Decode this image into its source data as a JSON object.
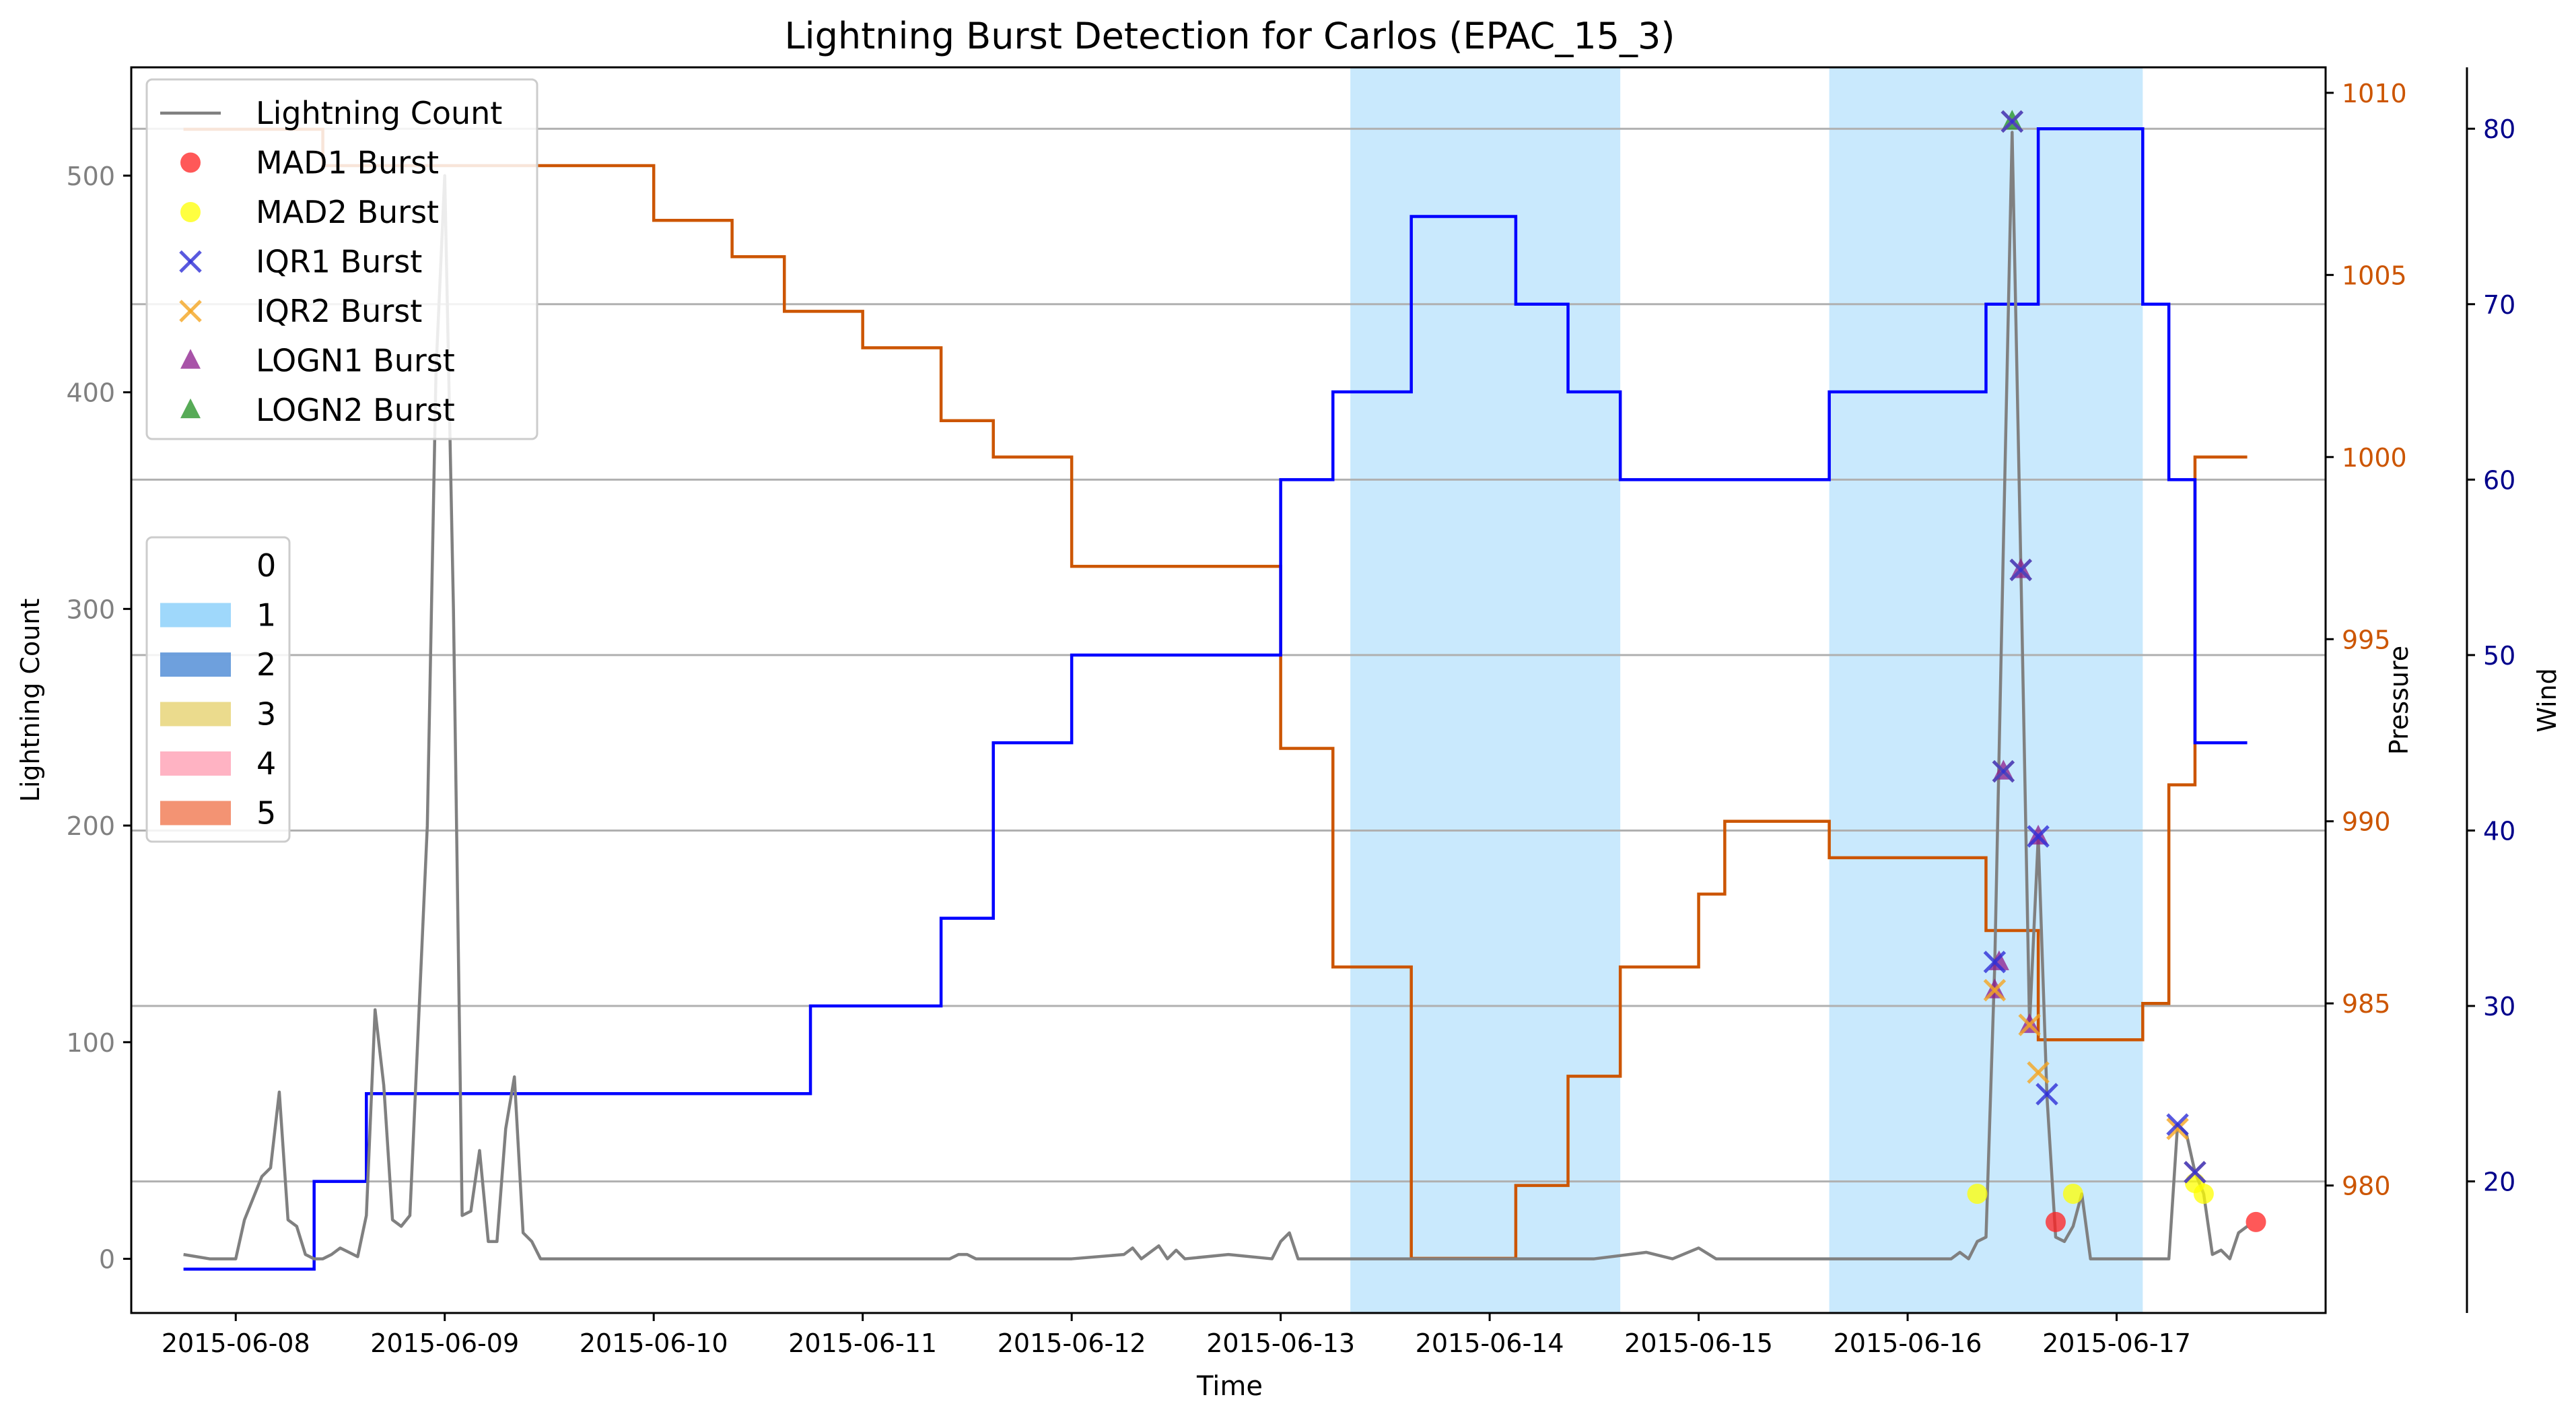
{
  "chart_data": {
    "type": "line",
    "title": "Lightning Burst Detection for Carlos (EPAC_15_3)",
    "xlabel": "Time",
    "ylabel_left": "Lightning Count",
    "ylabel_pressure": "Pressure",
    "ylabel_wind": "Wind",
    "x_range": [
      "2015-06-07T12:00",
      "2015-06-18T00:00"
    ],
    "x_ticks": [
      "2015-06-08",
      "2015-06-09",
      "2015-06-10",
      "2015-06-11",
      "2015-06-12",
      "2015-06-13",
      "2015-06-14",
      "2015-06-15",
      "2015-06-16",
      "2015-06-17"
    ],
    "ylim_left": [
      -25,
      550
    ],
    "yticks_left": [
      0,
      100,
      200,
      300,
      400,
      500
    ],
    "ylim_pressure": [
      976.5,
      1010.7
    ],
    "yticks_pressure": [
      980,
      985,
      990,
      995,
      1000,
      1005,
      1010
    ],
    "ylim_wind": [
      12.5,
      83.5
    ],
    "yticks_wind": [
      20,
      30,
      40,
      50,
      60,
      70,
      80
    ],
    "grid_y": true,
    "colors": {
      "lightning": "#808080",
      "pressure": "#cc5500",
      "wind": "#0000ff",
      "pressure_axis": "#cc5500",
      "wind_axis": "#00008b",
      "left_axis": "#808080",
      "cat1": "#87cefa",
      "cat2": "#4a88d4",
      "cat3": "#e6d270",
      "cat4": "#ffa0b4",
      "cat5": "#f07850",
      "mad1": "#ff2020",
      "mad2": "#ffff00",
      "iqr1": "#3030d8",
      "iqr2": "#f5a623",
      "logn1": "#8b1a8b",
      "logn2": "#1f8f1f"
    },
    "series_legend": [
      {
        "key": "lightning",
        "label": "Lightning Count",
        "marker": "line"
      },
      {
        "key": "mad1",
        "label": "MAD1 Burst",
        "marker": "circle"
      },
      {
        "key": "mad2",
        "label": "MAD2 Burst",
        "marker": "circle"
      },
      {
        "key": "iqr1",
        "label": "IQR1 Burst",
        "marker": "x"
      },
      {
        "key": "iqr2",
        "label": "IQR2 Burst",
        "marker": "x"
      },
      {
        "key": "logn1",
        "label": "LOGN1 Burst",
        "marker": "triangle"
      },
      {
        "key": "logn2",
        "label": "LOGN2 Burst",
        "marker": "triangle"
      }
    ],
    "category_legend": [
      {
        "label": "0",
        "color": ""
      },
      {
        "label": "1",
        "color": "#87cefa"
      },
      {
        "label": "2",
        "color": "#4a88d4"
      },
      {
        "label": "3",
        "color": "#e6d270"
      },
      {
        "label": "4",
        "color": "#ffa0b4"
      },
      {
        "label": "5",
        "color": "#f07850"
      }
    ],
    "category_spans": [
      {
        "category": 1,
        "start": "2015-06-13T08:00",
        "end": "2015-06-14T15:00"
      },
      {
        "category": 1,
        "start": "2015-06-15T15:00",
        "end": "2015-06-17T03:00"
      }
    ],
    "lightning": [
      [
        "2015-06-07T18:00",
        2
      ],
      [
        "2015-06-07T21:00",
        0
      ],
      [
        "2015-06-08T00:00",
        0
      ],
      [
        "2015-06-08T01:00",
        18
      ],
      [
        "2015-06-08T02:00",
        28
      ],
      [
        "2015-06-08T03:00",
        38
      ],
      [
        "2015-06-08T04:00",
        42
      ],
      [
        "2015-06-08T05:00",
        77
      ],
      [
        "2015-06-08T06:00",
        18
      ],
      [
        "2015-06-08T07:00",
        15
      ],
      [
        "2015-06-08T08:00",
        2
      ],
      [
        "2015-06-08T09:00",
        0
      ],
      [
        "2015-06-08T10:00",
        0
      ],
      [
        "2015-06-08T11:00",
        2
      ],
      [
        "2015-06-08T12:00",
        5
      ],
      [
        "2015-06-08T13:00",
        3
      ],
      [
        "2015-06-08T14:00",
        1
      ],
      [
        "2015-06-08T15:00",
        20
      ],
      [
        "2015-06-08T16:00",
        115
      ],
      [
        "2015-06-08T17:00",
        80
      ],
      [
        "2015-06-08T18:00",
        18
      ],
      [
        "2015-06-08T19:00",
        15
      ],
      [
        "2015-06-08T20:00",
        20
      ],
      [
        "2015-06-08T21:00",
        110
      ],
      [
        "2015-06-08T22:00",
        200
      ],
      [
        "2015-06-08T23:00",
        410
      ],
      [
        "2015-06-09T00:00",
        500
      ],
      [
        "2015-06-09T01:00",
        300
      ],
      [
        "2015-06-09T02:00",
        20
      ],
      [
        "2015-06-09T03:00",
        22
      ],
      [
        "2015-06-09T04:00",
        50
      ],
      [
        "2015-06-09T05:00",
        8
      ],
      [
        "2015-06-09T06:00",
        8
      ],
      [
        "2015-06-09T07:00",
        60
      ],
      [
        "2015-06-09T08:00",
        84
      ],
      [
        "2015-06-09T09:00",
        12
      ],
      [
        "2015-06-09T10:00",
        8
      ],
      [
        "2015-06-09T11:00",
        0
      ],
      [
        "2015-06-09T18:00",
        0
      ],
      [
        "2015-06-10T00:00",
        0
      ],
      [
        "2015-06-10T06:00",
        0
      ],
      [
        "2015-06-10T12:00",
        0
      ],
      [
        "2015-06-10T18:00",
        0
      ],
      [
        "2015-06-11T00:00",
        0
      ],
      [
        "2015-06-11T06:00",
        0
      ],
      [
        "2015-06-11T09:00",
        0
      ],
      [
        "2015-06-11T10:00",
        0
      ],
      [
        "2015-06-11T11:00",
        2
      ],
      [
        "2015-06-11T12:00",
        2
      ],
      [
        "2015-06-11T13:00",
        0
      ],
      [
        "2015-06-11T18:00",
        0
      ],
      [
        "2015-06-12T00:00",
        0
      ],
      [
        "2015-06-12T06:00",
        2
      ],
      [
        "2015-06-12T07:00",
        5
      ],
      [
        "2015-06-12T08:00",
        0
      ],
      [
        "2015-06-12T09:00",
        3
      ],
      [
        "2015-06-12T10:00",
        6
      ],
      [
        "2015-06-12T11:00",
        0
      ],
      [
        "2015-06-12T12:00",
        4
      ],
      [
        "2015-06-12T13:00",
        0
      ],
      [
        "2015-06-12T18:00",
        2
      ],
      [
        "2015-06-12T23:00",
        0
      ],
      [
        "2015-06-13T00:00",
        8
      ],
      [
        "2015-06-13T01:00",
        12
      ],
      [
        "2015-06-13T02:00",
        0
      ],
      [
        "2015-06-13T12:00",
        0
      ],
      [
        "2015-06-14T00:00",
        0
      ],
      [
        "2015-06-14T12:00",
        0
      ],
      [
        "2015-06-14T18:00",
        3
      ],
      [
        "2015-06-14T21:00",
        0
      ],
      [
        "2015-06-15T00:00",
        5
      ],
      [
        "2015-06-15T02:00",
        0
      ],
      [
        "2015-06-15T12:00",
        0
      ],
      [
        "2015-06-16T00:00",
        0
      ],
      [
        "2015-06-16T05:00",
        0
      ],
      [
        "2015-06-16T06:00",
        3
      ],
      [
        "2015-06-16T07:00",
        0
      ],
      [
        "2015-06-16T08:00",
        8
      ],
      [
        "2015-06-16T09:00",
        10
      ],
      [
        "2015-06-16T10:00",
        135
      ],
      [
        "2015-06-16T11:00",
        330
      ],
      [
        "2015-06-16T12:00",
        520
      ],
      [
        "2015-06-16T13:00",
        320
      ],
      [
        "2015-06-16T14:00",
        108
      ],
      [
        "2015-06-16T15:00",
        195
      ],
      [
        "2015-06-16T16:00",
        75
      ],
      [
        "2015-06-16T17:00",
        10
      ],
      [
        "2015-06-16T18:00",
        8
      ],
      [
        "2015-06-16T19:00",
        15
      ],
      [
        "2015-06-16T20:00",
        30
      ],
      [
        "2015-06-16T21:00",
        0
      ],
      [
        "2015-06-17T00:00",
        0
      ],
      [
        "2015-06-17T06:00",
        0
      ],
      [
        "2015-06-17T07:00",
        62
      ],
      [
        "2015-06-17T08:00",
        58
      ],
      [
        "2015-06-17T09:00",
        40
      ],
      [
        "2015-06-17T10:00",
        30
      ],
      [
        "2015-06-17T11:00",
        2
      ],
      [
        "2015-06-17T12:00",
        4
      ],
      [
        "2015-06-17T13:00",
        0
      ],
      [
        "2015-06-17T14:00",
        12
      ],
      [
        "2015-06-17T15:00",
        15
      ]
    ],
    "pressure": [
      [
        "2015-06-07T18:00",
        1009.0
      ],
      [
        "2015-06-08T10:00",
        1008.0
      ],
      [
        "2015-06-09T24:00",
        1008.0
      ],
      [
        "2015-06-10T00:00",
        1006.5
      ],
      [
        "2015-06-10T09:00",
        1005.5
      ],
      [
        "2015-06-10T15:00",
        1004.0
      ],
      [
        "2015-06-11T00:00",
        1003.0
      ],
      [
        "2015-06-11T09:00",
        1001.0
      ],
      [
        "2015-06-11T15:00",
        1000.0
      ],
      [
        "2015-06-12T00:00",
        997.0
      ],
      [
        "2015-06-13T00:00",
        992.0
      ],
      [
        "2015-06-13T06:00",
        986.0
      ],
      [
        "2015-06-13T15:00",
        978.0
      ],
      [
        "2015-06-14T03:00",
        980.0
      ],
      [
        "2015-06-14T09:00",
        983.0
      ],
      [
        "2015-06-14T15:00",
        986.0
      ],
      [
        "2015-06-15T00:00",
        988.0
      ],
      [
        "2015-06-15T03:00",
        990.0
      ],
      [
        "2015-06-15T15:00",
        989.0
      ],
      [
        "2015-06-16T09:00",
        987.0
      ],
      [
        "2015-06-16T15:00",
        984.0
      ],
      [
        "2015-06-17T03:00",
        985.0
      ],
      [
        "2015-06-17T06:00",
        991.0
      ],
      [
        "2015-06-17T09:00",
        1000.0
      ]
    ],
    "pressure_end": "2015-06-17T15:00",
    "wind": [
      [
        "2015-06-07T18:00",
        15
      ],
      [
        "2015-06-08T09:00",
        20
      ],
      [
        "2015-06-08T15:00",
        25
      ],
      [
        "2015-06-10T18:00",
        30
      ],
      [
        "2015-06-11T09:00",
        35
      ],
      [
        "2015-06-11T15:00",
        45
      ],
      [
        "2015-06-12T00:00",
        50
      ],
      [
        "2015-06-13T00:00",
        60
      ],
      [
        "2015-06-13T06:00",
        65
      ],
      [
        "2015-06-13T15:00",
        75
      ],
      [
        "2015-06-14T03:00",
        70
      ],
      [
        "2015-06-14T09:00",
        65
      ],
      [
        "2015-06-14T15:00",
        60
      ],
      [
        "2015-06-15T15:00",
        65
      ],
      [
        "2015-06-16T09:00",
        70
      ],
      [
        "2015-06-16T15:00",
        80
      ],
      [
        "2015-06-17T03:00",
        70
      ],
      [
        "2015-06-17T06:00",
        60
      ],
      [
        "2015-06-17T09:00",
        45
      ]
    ],
    "wind_end": "2015-06-17T15:00",
    "bursts": {
      "mad1": [
        [
          "2015-06-16T17:00",
          17
        ],
        [
          "2015-06-17T16:00",
          17
        ]
      ],
      "mad2": [
        [
          "2015-06-16T08:00",
          30
        ],
        [
          "2015-06-16T19:00",
          30
        ],
        [
          "2015-06-17T09:00",
          35
        ],
        [
          "2015-06-17T10:00",
          30
        ]
      ],
      "iqr1": [
        [
          "2015-06-16T10:00",
          137
        ],
        [
          "2015-06-16T11:00",
          225
        ],
        [
          "2015-06-16T12:00",
          525
        ],
        [
          "2015-06-16T13:00",
          318
        ],
        [
          "2015-06-16T15:00",
          195
        ],
        [
          "2015-06-16T16:00",
          76
        ],
        [
          "2015-06-17T07:00",
          62
        ],
        [
          "2015-06-17T09:00",
          40
        ]
      ],
      "iqr2": [
        [
          "2015-06-16T10:00",
          124
        ],
        [
          "2015-06-16T11:00",
          225
        ],
        [
          "2015-06-16T12:00",
          525
        ],
        [
          "2015-06-16T13:00",
          318
        ],
        [
          "2015-06-16T14:00",
          108
        ],
        [
          "2015-06-16T15:00",
          86
        ],
        [
          "2015-06-17T07:00",
          60
        ],
        [
          "2015-06-17T09:00",
          40
        ]
      ],
      "logn1": [
        [
          "2015-06-16T10:00",
          124
        ],
        [
          "2015-06-16T10:30",
          137
        ],
        [
          "2015-06-16T11:00",
          225
        ],
        [
          "2015-06-16T13:00",
          318
        ],
        [
          "2015-06-16T14:00",
          108
        ],
        [
          "2015-06-16T15:00",
          195
        ]
      ],
      "logn2": [
        [
          "2015-06-16T12:00",
          525
        ]
      ]
    }
  }
}
